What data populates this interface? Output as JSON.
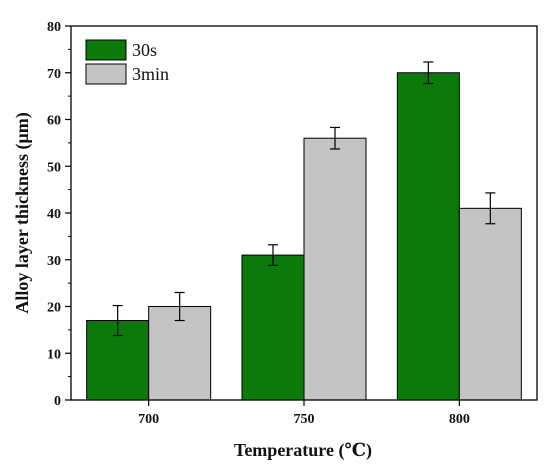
{
  "chart_data": {
    "type": "bar",
    "categories": [
      "700",
      "750",
      "800"
    ],
    "series": [
      {
        "name": "30s",
        "values": [
          17,
          31,
          70
        ],
        "errors": [
          3.2,
          2.2,
          2.3
        ],
        "color": "#0b7a0b"
      },
      {
        "name": "3min",
        "values": [
          20,
          56,
          41
        ],
        "errors": [
          3.0,
          2.3,
          3.3
        ],
        "color": "#c4c4c4"
      }
    ],
    "title": "",
    "xlabel": "Temperature (℃)",
    "ylabel": "Alloy layer thickness (μm)",
    "ylim": [
      0,
      80
    ],
    "yticks": [
      "0",
      "10",
      "20",
      "30",
      "40",
      "50",
      "60",
      "70",
      "80"
    ],
    "grid": false,
    "legend_position": "top-left",
    "error_bars": true
  }
}
